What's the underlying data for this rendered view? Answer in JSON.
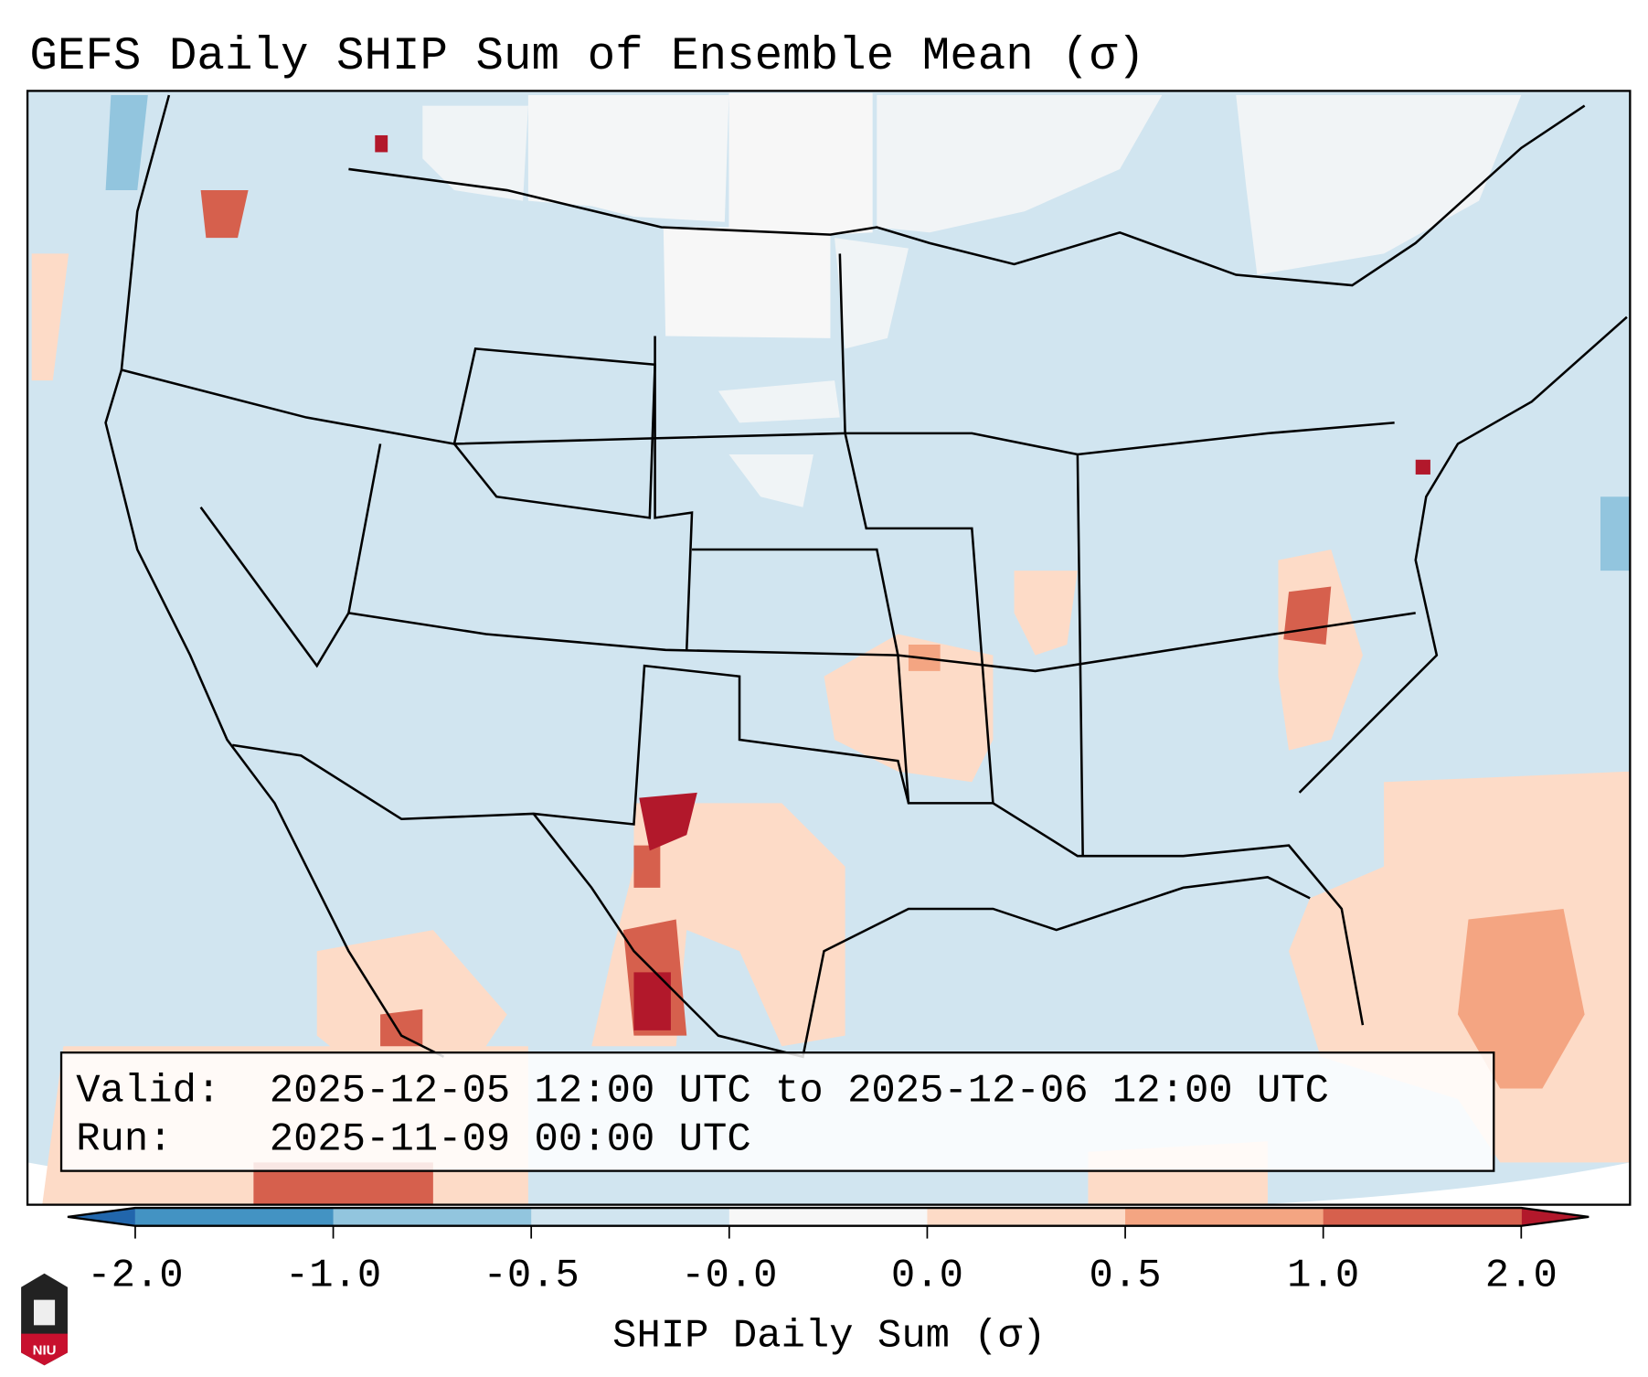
{
  "title": "GEFS Daily SHIP Sum of Ensemble Mean (σ)",
  "info_box": {
    "valid_label": "Valid:",
    "valid_value": "2025-12-05 12:00 UTC to 2025-12-06 12:00 UTC",
    "run_label": "Run:",
    "run_value": "2025-11-09 00:00 UTC"
  },
  "logo_text": "NIU",
  "chart_data": {
    "type": "heatmap",
    "title": "GEFS Daily SHIP Sum of Ensemble Mean (σ)",
    "colorbar": {
      "label": "SHIP Daily Sum (σ)",
      "tick_labels": [
        "-2.0",
        "-1.0",
        "-0.5",
        "-0.0",
        "0.0",
        "0.5",
        "1.0",
        "2.0"
      ],
      "colors": [
        "#2166ac",
        "#4393c3",
        "#92c5de",
        "#d1e5f0",
        "#f7f7f7",
        "#fddbc7",
        "#f4a582",
        "#d6604d",
        "#b2182b"
      ],
      "extend": "both"
    },
    "region": "Contiguous United States"
  }
}
